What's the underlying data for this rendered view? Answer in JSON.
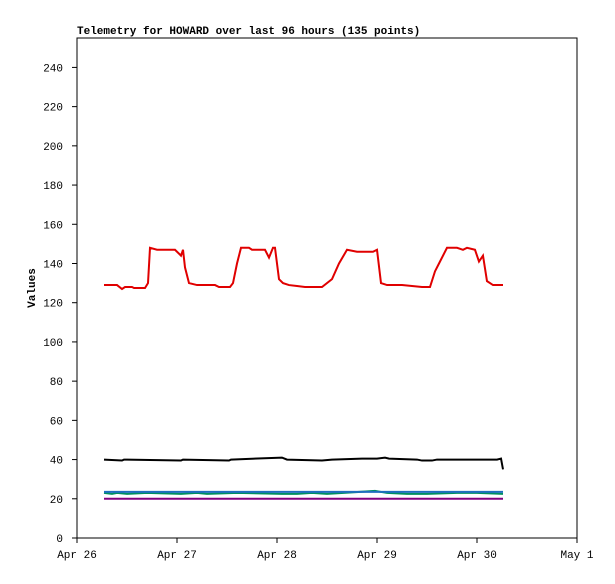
{
  "chart_data": {
    "type": "line",
    "title": "Telemetry for HOWARD over last 96 hours (135 points)",
    "y_label": "Values",
    "xlim": [
      0,
      5
    ],
    "xticks": [
      {
        "value": 0,
        "label": "Apr 26"
      },
      {
        "value": 1,
        "label": "Apr 27"
      },
      {
        "value": 2,
        "label": "Apr 28"
      },
      {
        "value": 3,
        "label": "Apr 29"
      },
      {
        "value": 4,
        "label": "Apr 30"
      },
      {
        "value": 5,
        "label": "May 1"
      }
    ],
    "ylim": [
      0,
      255
    ],
    "yticks": [
      0,
      20,
      40,
      60,
      80,
      100,
      120,
      140,
      160,
      180,
      200,
      220,
      240
    ],
    "series": [
      {
        "color": "#e00000",
        "x": [
          0.27,
          0.4,
          0.45,
          0.48,
          0.55,
          0.57,
          0.68,
          0.71,
          0.73,
          0.8,
          0.98,
          1.04,
          1.06,
          1.08,
          1.12,
          1.2,
          1.38,
          1.42,
          1.53,
          1.56,
          1.6,
          1.64,
          1.72,
          1.75,
          1.88,
          1.92,
          1.96,
          1.98,
          2.02,
          2.06,
          2.12,
          2.2,
          2.28,
          2.45,
          2.55,
          2.62,
          2.7,
          2.8,
          2.96,
          3.0,
          3.04,
          3.1,
          3.25,
          3.45,
          3.53,
          3.58,
          3.62,
          3.7,
          3.8,
          3.86,
          3.9,
          3.98,
          4.02,
          4.06,
          4.1,
          4.16,
          4.26
        ],
        "values": [
          129,
          129,
          127,
          128,
          128,
          127.5,
          127.5,
          130,
          148,
          147,
          147,
          144,
          147,
          138,
          130,
          129,
          129,
          128,
          128,
          130,
          140,
          148,
          148,
          147,
          147,
          143,
          148,
          148,
          132,
          130,
          129,
          128.5,
          128,
          128,
          132,
          140,
          147,
          146,
          146,
          147,
          130,
          129,
          129,
          128,
          128,
          136,
          140,
          148,
          148,
          147,
          148,
          147,
          141,
          144,
          131,
          129,
          129
        ]
      },
      {
        "color": "#000000",
        "x": [
          0.27,
          0.45,
          0.47,
          1.04,
          1.06,
          1.52,
          1.54,
          2.05,
          2.1,
          2.45,
          2.55,
          2.85,
          3.0,
          3.08,
          3.12,
          3.4,
          3.45,
          3.55,
          3.6,
          4.2,
          4.24,
          4.26
        ],
        "values": [
          40,
          39.5,
          40,
          39.5,
          40,
          39.5,
          40,
          41,
          40,
          39.5,
          40,
          40.5,
          40.5,
          41,
          40.5,
          40,
          39.5,
          39.5,
          40,
          40,
          40.5,
          35
        ]
      },
      {
        "color": "#009060",
        "x": [
          0.27,
          0.35,
          0.4,
          0.5,
          0.7,
          1.04,
          1.2,
          1.3,
          1.6,
          2.05,
          2.2,
          2.35,
          2.5,
          2.98,
          3.1,
          3.3,
          3.5,
          3.8,
          4.0,
          4.26
        ],
        "values": [
          23,
          22.5,
          23,
          22.5,
          23,
          22.5,
          23,
          22.5,
          23,
          22.5,
          22.5,
          23,
          22.5,
          24,
          23,
          22.5,
          22.5,
          23,
          23,
          22.5
        ]
      },
      {
        "color": "#1f6fbf",
        "x": [
          0.27,
          4.26
        ],
        "values": [
          23.5,
          23.5
        ]
      },
      {
        "color": "#800080",
        "x": [
          0.27,
          4.26
        ],
        "values": [
          20,
          20
        ]
      }
    ]
  }
}
